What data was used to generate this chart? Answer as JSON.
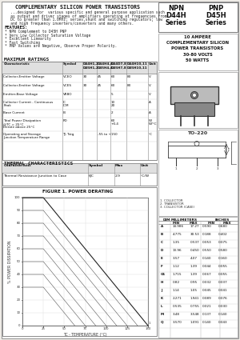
{
  "title": "COMPLEMENTARY SILICON POWER TRANSISTORS",
  "description": "   ...designed for  various specific and general purpose application such\n   as output and driver stages of amplifiers operating at frequencies from\n   DC to greater than 1.0MHz; series,shunt and switching regulators; low\n   and high frequency inverters/converters and many others.",
  "features_title": "FEATURES:",
  "features": [
    "* NPN Complement to D45H PNP",
    "* Very Low Collector Saturation Voltage",
    "* Excellent Linearity",
    "* Fast Switching",
    "* PNP Values are Negative, Observe Proper Polarity."
  ],
  "max_ratings_title": "MAXIMUM RATINGS",
  "npn_label": "NPN",
  "pnp_label": "PNP",
  "npn_series": "D44H",
  "pnp_series": "D45H",
  "series_label": "Series",
  "product_desc_lines": [
    "10 AMPERE",
    "COMPLEMENTARY SILICON",
    "POWER TRANSISTORS",
    "30-80 VOLTS",
    "50 WATTS"
  ],
  "package": "TO-220",
  "thermal_title": "THERMAL CHARACTERISTICS",
  "graph_title": "FIGURE 1. POWER DERATING",
  "graph_xlabel": "TC - TEMPERATURE (°C)",
  "graph_ylabel": "% POWER DISSIPATION",
  "dim_note_1": "1. COLLECTOR",
  "dim_note_2": "2. TRANSISTOR",
  "dim_note_3": "3. COLLECTOR (CASE)",
  "dim_headers": [
    "DIM",
    "MILLIMETERS",
    "INCHES"
  ],
  "dim_subheaders": [
    "",
    "MIN",
    "MAX",
    "MIN",
    "MAX"
  ],
  "dim_rows": [
    [
      "A",
      "14.986",
      "17.27",
      "0.590",
      "0.680"
    ],
    [
      "B",
      "4.775",
      "30.53",
      "0.188",
      "0.402"
    ],
    [
      "C",
      "1.35",
      "0.537",
      "0.053",
      "0.075"
    ],
    [
      "D",
      "13.96",
      "0.450",
      "0.550",
      "0.580"
    ],
    [
      "E",
      "3.57",
      "4.07",
      "0.140",
      "0.160"
    ],
    [
      "F",
      "1.12",
      "1.39",
      "0.044",
      "0.055"
    ],
    [
      "G1",
      "1.715",
      "1.39",
      "0.067",
      "0.055"
    ],
    [
      "H",
      "0.82",
      "0.95",
      "0.032",
      "0.037"
    ],
    [
      "J",
      "1.14",
      "1.05",
      "0.045",
      "0.041"
    ],
    [
      "K",
      "2.271",
      "1.941",
      "0.089",
      "0.076"
    ],
    [
      "L",
      "0.535",
      "0.755",
      "0.021",
      "0.030"
    ],
    [
      "M",
      "3.48",
      "3.548",
      "0.137",
      "0.140"
    ],
    [
      "Q",
      "3.570",
      "1.091",
      "0.140",
      "0.043"
    ]
  ],
  "bg_color": "#f0ede8",
  "page_bg": "#ffffff",
  "header_bg": "#e8e8e8"
}
